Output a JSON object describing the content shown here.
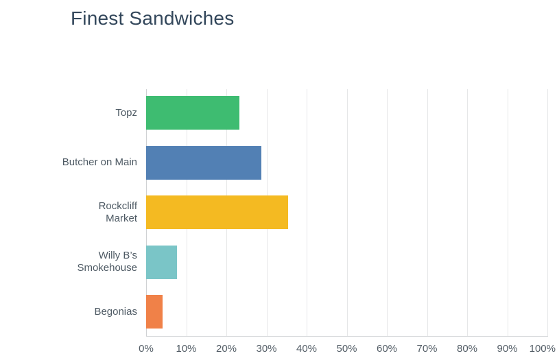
{
  "chart_data": {
    "type": "bar",
    "orientation": "horizontal",
    "title": "Finest Sandwiches",
    "categories": [
      "Topz",
      "Butcher on Main",
      "Rockcliff Market",
      "Willy B’s Smokehouse",
      "Begonias"
    ],
    "category_lines": [
      [
        "Topz"
      ],
      [
        "Butcher on Main"
      ],
      [
        "Rockcliff",
        "Market"
      ],
      [
        "Willy B’s",
        "Smokehouse"
      ],
      [
        "Begonias"
      ]
    ],
    "values": [
      23.3,
      28.7,
      35.4,
      7.6,
      4.1
    ],
    "value_unit": "%",
    "bar_colors": [
      "#3ebc71",
      "#5280b4",
      "#f4ba22",
      "#7ac5c7",
      "#f08148"
    ],
    "xlim": [
      0,
      100
    ],
    "x_tick_labels": [
      "0%",
      "10%",
      "20%",
      "30%",
      "40%",
      "50%",
      "60%",
      "70%",
      "80%",
      "90%",
      "100%"
    ],
    "grid": "vertical gridlines every 10%",
    "legend": "none",
    "accent_colors": {
      "title_text": "#33475b",
      "label_text": "#4e5a64",
      "gridline": "#e6e7e8",
      "axis_line": "#cfd1d3"
    }
  }
}
